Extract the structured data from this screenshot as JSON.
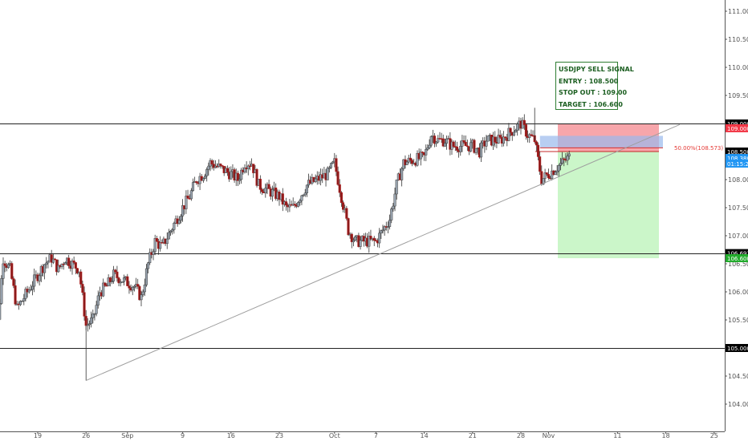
{
  "signal": {
    "title": "USDJPY SELL SIGNAL",
    "entry": "ENTRY : 108.500",
    "stop": "STOP OUT : 109.00",
    "target": "TARGET : 106.600"
  },
  "fib_label": "50.00%(108.573)",
  "price_badges": [
    {
      "price": 109.0,
      "text": "109.000",
      "color": "#000000",
      "name": "badge-109-000"
    },
    {
      "price": 108.915,
      "text": "109.000",
      "color": "#f23645",
      "name": "badge-stop"
    },
    {
      "price": 108.5,
      "text": "108.500",
      "color": "#000000",
      "name": "badge-108-500"
    },
    {
      "price": 108.385,
      "text": "108.380",
      "color": "#2196f3",
      "name": "badge-current-price"
    },
    {
      "price": 108.285,
      "text": "01:15:26",
      "color": "#2196f3",
      "name": "badge-countdown"
    },
    {
      "price": 106.691,
      "text": "106.691",
      "color": "#000000",
      "name": "badge-106-691"
    },
    {
      "price": 106.6,
      "text": "106.600",
      "color": "#22ab2c",
      "name": "badge-target"
    },
    {
      "price": 105.0,
      "text": "105.000",
      "color": "#000000",
      "name": "badge-105-000"
    }
  ],
  "chart_data": {
    "type": "candlestick",
    "symbol": "USDJPY",
    "ylim": [
      104.35,
      111.15
    ],
    "y_ticks": [
      "111.000",
      "110.500",
      "110.000",
      "109.500",
      "109.000",
      "108.500",
      "108.000",
      "107.500",
      "107.000",
      "106.500",
      "106.000",
      "105.500",
      "105.000",
      "104.500",
      "104.000"
    ],
    "x_ticks": [
      "19",
      "26",
      "Sep",
      "9",
      "16",
      "23",
      "Oct",
      "7",
      "14",
      "21",
      "28",
      "Nov",
      "11",
      "18",
      "25"
    ],
    "horizontal_levels": [
      109.0,
      106.691,
      105.0
    ],
    "trendline": {
      "from": [
        "Aug 26",
        104.42
      ],
      "to": [
        "Nov 20",
        108.98
      ]
    },
    "trade_setup": {
      "direction": "short",
      "entry": 108.5,
      "stop": 109.0,
      "target": 106.6
    },
    "fib_retracement_50": 108.573,
    "price_path": [
      [
        "Aug 12",
        105.6
      ],
      [
        "Aug 13",
        105.1
      ],
      [
        "Aug 14",
        106.6
      ],
      [
        "Aug 15",
        106.4
      ],
      [
        "Aug 16",
        105.7
      ],
      [
        "Aug 19",
        106.3
      ],
      [
        "Aug 20",
        106.5
      ],
      [
        "Aug 21",
        106.6
      ],
      [
        "Aug 22",
        106.4
      ],
      [
        "Aug 23",
        106.6
      ],
      [
        "Aug 25",
        106.4
      ],
      [
        "Aug 26",
        105.4
      ],
      [
        "Aug 27",
        105.5
      ],
      [
        "Aug 28",
        106.0
      ],
      [
        "Aug 29",
        106.1
      ],
      [
        "Aug 30",
        106.3
      ],
      [
        "Sep 2",
        106.1
      ],
      [
        "Sep 3",
        105.9
      ],
      [
        "Sep 4",
        106.5
      ],
      [
        "Sep 5",
        106.9
      ],
      [
        "Sep 6",
        106.8
      ],
      [
        "Sep 9",
        107.5
      ],
      [
        "Sep 10",
        107.7
      ],
      [
        "Sep 11",
        108.0
      ],
      [
        "Sep 12",
        108.1
      ],
      [
        "Sep 13",
        108.3
      ],
      [
        "Sep 16",
        108.1
      ],
      [
        "Sep 17",
        108.0
      ],
      [
        "Sep 18",
        108.3
      ],
      [
        "Sep 19",
        108.3
      ],
      [
        "Sep 20",
        107.9
      ],
      [
        "Sep 23",
        107.7
      ],
      [
        "Sep 24",
        107.5
      ],
      [
        "Sep 25",
        107.5
      ],
      [
        "Sep 26",
        107.7
      ],
      [
        "Sep 27",
        107.9
      ],
      [
        "Sep 30",
        108.1
      ],
      [
        "Oct 1",
        108.3
      ],
      [
        "Oct 2",
        107.7
      ],
      [
        "Oct 3",
        107.1
      ],
      [
        "Oct 4",
        106.9
      ],
      [
        "Oct 7",
        106.9
      ],
      [
        "Oct 8",
        107.1
      ],
      [
        "Oct 9",
        107.3
      ],
      [
        "Oct 10",
        107.9
      ],
      [
        "Oct 11",
        108.3
      ],
      [
        "Oct 14",
        108.4
      ],
      [
        "Oct 15",
        108.8
      ],
      [
        "Oct 16",
        108.7
      ],
      [
        "Oct 17",
        108.7
      ],
      [
        "Oct 18",
        108.6
      ],
      [
        "Oct 21",
        108.6
      ],
      [
        "Oct 22",
        108.5
      ],
      [
        "Oct 23",
        108.7
      ],
      [
        "Oct 24",
        108.7
      ],
      [
        "Oct 25",
        108.7
      ],
      [
        "Oct 28",
        109.0
      ],
      [
        "Oct 29",
        108.8
      ],
      [
        "Oct 30",
        108.7
      ],
      [
        "Oct 31",
        108.0
      ],
      [
        "Nov 1",
        108.1
      ],
      [
        "Nov 4",
        108.4
      ]
    ]
  }
}
